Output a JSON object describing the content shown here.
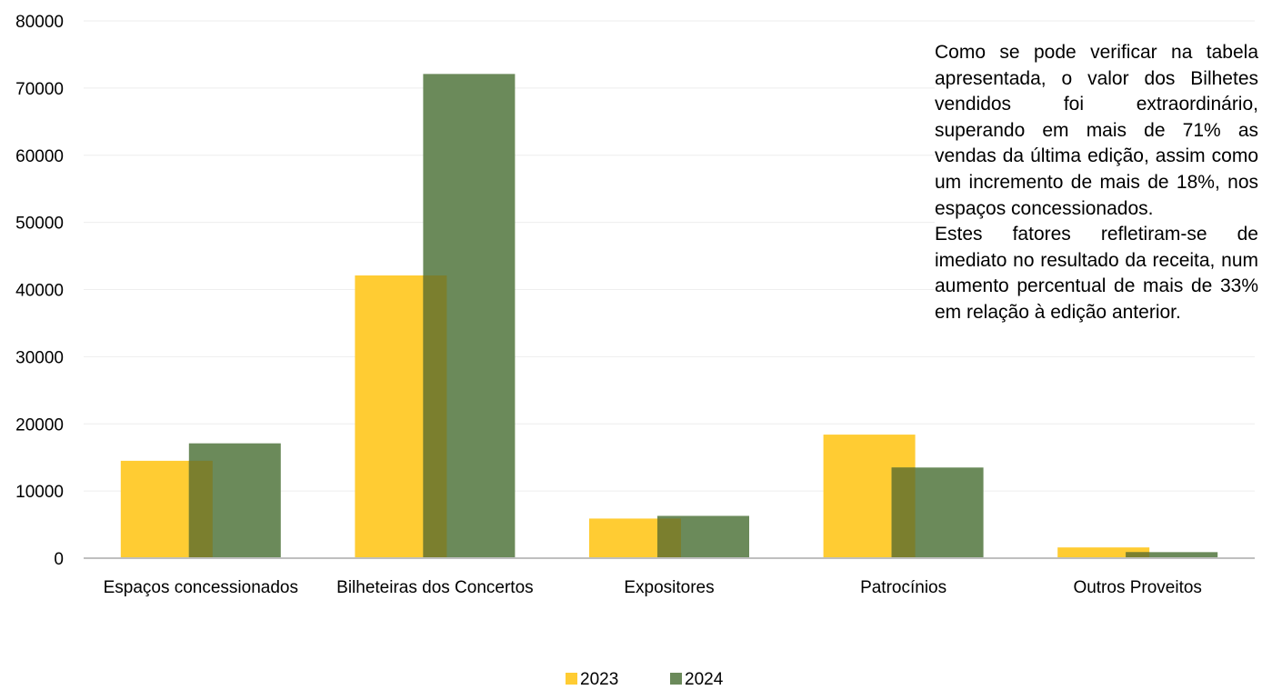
{
  "chart_data": {
    "type": "bar",
    "categories": [
      "Espaços concessionados",
      "Bilheteiras dos Concertos",
      "Expositores",
      "Patrocínios",
      "Outros Proveitos"
    ],
    "series": [
      {
        "name": "2023",
        "values": [
          14500,
          42100,
          5900,
          18400,
          1600
        ],
        "color": "#ffcc33"
      },
      {
        "name": "2024",
        "values": [
          17100,
          72100,
          6300,
          13500,
          900
        ],
        "color": "#6b8a5a"
      }
    ],
    "overlap_color": "#7b7f2e",
    "yticks": [
      0,
      10000,
      20000,
      30000,
      40000,
      50000,
      60000,
      70000,
      80000
    ],
    "ylim": [
      0,
      80000
    ],
    "xlabel": "",
    "ylabel": "",
    "grid": true,
    "legend": "bottom"
  },
  "annotation": {
    "paragraph1": "Como se pode verificar na tabela apresentada, o valor dos Bilhetes vendidos foi extraordinário, superando em mais de 71% as vendas da última edição, assim como um incremento de mais de 18%, nos espaços concessionados.",
    "paragraph2": "Estes fatores refletiram-se de imediato no resultado da receita, num aumento percentual de mais de 33% em relação à edição anterior."
  }
}
